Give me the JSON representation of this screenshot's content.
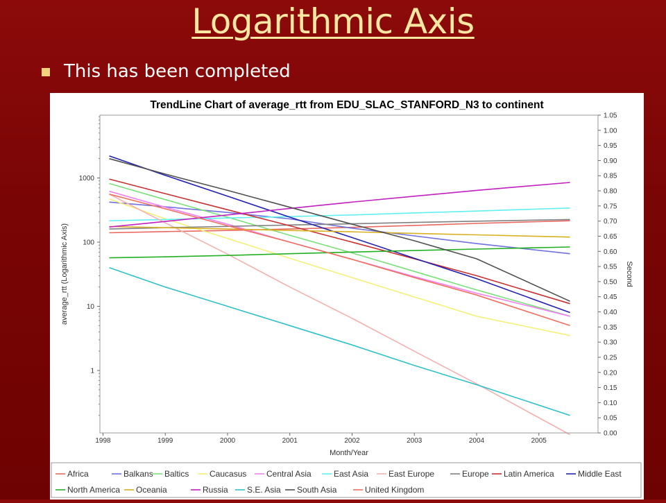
{
  "slide": {
    "title": "Logarithmic Axis",
    "bullet": "This has been completed"
  },
  "chart_data": {
    "type": "line",
    "title": "TrendLine Chart of average_rtt from EDU_SLAC_STANFORD_N3 to continent",
    "xlabel": "Month/Year",
    "ylabel": "average_rtt (Logarithmic Axis)",
    "y2label": "Second",
    "x_ticks": [
      "1998",
      "1999",
      "2000",
      "2001",
      "2002",
      "2003",
      "2004",
      "2005"
    ],
    "x_range": [
      1997.95,
      2005.95
    ],
    "y_scale": "log",
    "y_ticks": [
      "1",
      "10",
      "100",
      "1000"
    ],
    "y2_ticks": [
      "0.00",
      "0.05",
      "0.10",
      "0.15",
      "0.20",
      "0.25",
      "0.30",
      "0.35",
      "0.40",
      "0.45",
      "0.50",
      "0.55",
      "0.60",
      "0.65",
      "0.70",
      "0.75",
      "0.80",
      "0.85",
      "0.90",
      "0.95",
      "1.00",
      "1.05"
    ],
    "y2_range": [
      0,
      1.05
    ],
    "grid": false,
    "legend_position": "bottom",
    "series": [
      {
        "name": "Africa",
        "color": "#e8675f",
        "points": [
          [
            1998.1,
            140
          ],
          [
            1999,
            146
          ],
          [
            2000,
            152
          ],
          [
            2001,
            160
          ],
          [
            2002,
            170
          ],
          [
            2003,
            182
          ],
          [
            2004,
            196
          ],
          [
            2005.5,
            215
          ]
        ]
      },
      {
        "name": "Balkans",
        "color": "#7070e0",
        "points": [
          [
            1998.1,
            420
          ],
          [
            1999,
            355
          ],
          [
            2000,
            290
          ],
          [
            2001,
            230
          ],
          [
            2002,
            165
          ],
          [
            2003,
            125
          ],
          [
            2004,
            95
          ],
          [
            2005.5,
            66
          ]
        ]
      },
      {
        "name": "Baltics",
        "color": "#78e078",
        "points": [
          [
            1998.1,
            820
          ],
          [
            1999,
            460
          ],
          [
            2000,
            245
          ],
          [
            2001,
            128
          ],
          [
            2002,
            68
          ],
          [
            2003,
            35
          ],
          [
            2004,
            18
          ],
          [
            2005.5,
            7
          ]
        ]
      },
      {
        "name": "Caucasus",
        "color": "#f5f07a",
        "points": [
          [
            1998.1,
            470
          ],
          [
            1999,
            230
          ],
          [
            2000,
            114
          ],
          [
            2001,
            56
          ],
          [
            2002,
            28
          ],
          [
            2003,
            14
          ],
          [
            2004,
            7
          ],
          [
            2005.5,
            3.5
          ]
        ]
      },
      {
        "name": "Central Asia",
        "color": "#f080f0",
        "points": [
          [
            1998.1,
            620
          ],
          [
            1999,
            350
          ],
          [
            2000,
            190
          ],
          [
            2001,
            100
          ],
          [
            2002,
            54
          ],
          [
            2003,
            29
          ],
          [
            2004,
            16
          ],
          [
            2005.5,
            7
          ]
        ]
      },
      {
        "name": "East Asia",
        "color": "#60f0f0",
        "points": [
          [
            1998.1,
            215
          ],
          [
            1999,
            225
          ],
          [
            2000,
            238
          ],
          [
            2001,
            250
          ],
          [
            2002,
            265
          ],
          [
            2003,
            285
          ],
          [
            2004,
            305
          ],
          [
            2005.5,
            340
          ]
        ]
      },
      {
        "name": "East Europe",
        "color": "#f4b0b0",
        "points": [
          [
            1998.1,
            560
          ],
          [
            1999,
            200
          ],
          [
            2000,
            65
          ],
          [
            2001,
            20
          ],
          [
            2002,
            6.5
          ],
          [
            2003,
            2
          ],
          [
            2004,
            0.62
          ],
          [
            2005.5,
            0.1
          ]
        ]
      },
      {
        "name": "Europe",
        "color": "#808080",
        "points": [
          [
            1998.1,
            160
          ],
          [
            1999,
            168
          ],
          [
            2000,
            176
          ],
          [
            2001,
            185
          ],
          [
            2002,
            193
          ],
          [
            2003,
            203
          ],
          [
            2004,
            212
          ],
          [
            2005.5,
            225
          ]
        ]
      },
      {
        "name": "Latin America",
        "color": "#c83030",
        "points": [
          [
            1998.1,
            960
          ],
          [
            1999,
            570
          ],
          [
            2000,
            320
          ],
          [
            2001,
            180
          ],
          [
            2002,
            100
          ],
          [
            2003,
            55
          ],
          [
            2004,
            30
          ],
          [
            2005.5,
            11
          ]
        ]
      },
      {
        "name": "Middle East",
        "color": "#2020b0",
        "points": [
          [
            1998.1,
            2200
          ],
          [
            1999,
            1100
          ],
          [
            2000,
            520
          ],
          [
            2001,
            245
          ],
          [
            2002,
            118
          ],
          [
            2003,
            56
          ],
          [
            2004,
            27
          ],
          [
            2005.5,
            8
          ]
        ]
      },
      {
        "name": "North America",
        "color": "#22b022",
        "points": [
          [
            1998.1,
            57
          ],
          [
            1999,
            59
          ],
          [
            2000,
            62
          ],
          [
            2001,
            66
          ],
          [
            2002,
            70
          ],
          [
            2003,
            74
          ],
          [
            2004,
            78
          ],
          [
            2005.5,
            84
          ]
        ]
      },
      {
        "name": "Oceania",
        "color": "#d8b020",
        "points": [
          [
            1998.1,
            175
          ],
          [
            1999,
            168
          ],
          [
            2000,
            160
          ],
          [
            2001,
            152
          ],
          [
            2002,
            145
          ],
          [
            2003,
            137
          ],
          [
            2004,
            130
          ],
          [
            2005.5,
            120
          ]
        ]
      },
      {
        "name": "Russia",
        "color": "#c020c0",
        "points": [
          [
            1998.1,
            172
          ],
          [
            1999,
            210
          ],
          [
            2000,
            265
          ],
          [
            2001,
            335
          ],
          [
            2002,
            420
          ],
          [
            2003,
            520
          ],
          [
            2004,
            640
          ],
          [
            2005.5,
            850
          ]
        ]
      },
      {
        "name": "S.E. Asia",
        "color": "#30c0c8",
        "points": [
          [
            1998.1,
            40
          ],
          [
            1999,
            20
          ],
          [
            2000,
            10
          ],
          [
            2001,
            5
          ],
          [
            2002,
            2.5
          ],
          [
            2003,
            1.2
          ],
          [
            2004,
            0.6
          ],
          [
            2005.5,
            0.2
          ]
        ]
      },
      {
        "name": "South Asia",
        "color": "#505050",
        "points": [
          [
            1998.1,
            2000
          ],
          [
            1999,
            1150
          ],
          [
            2000,
            640
          ],
          [
            2001,
            350
          ],
          [
            2002,
            190
          ],
          [
            2003,
            105
          ],
          [
            2004,
            55
          ],
          [
            2005.5,
            12
          ]
        ]
      },
      {
        "name": "United Kingdom",
        "color": "#f07060",
        "points": [
          [
            1998.1,
            560
          ],
          [
            1999,
            330
          ],
          [
            2000,
            180
          ],
          [
            2001,
            100
          ],
          [
            2002,
            54
          ],
          [
            2003,
            28
          ],
          [
            2004,
            15
          ],
          [
            2005.5,
            5
          ]
        ]
      }
    ]
  }
}
